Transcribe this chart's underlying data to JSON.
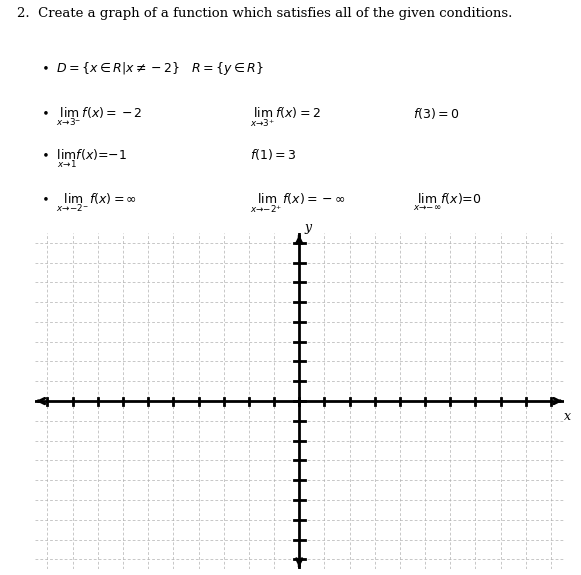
{
  "title": "2.  Create a graph of a function which satisfies all of the given conditions.",
  "grid_color": "#b0b0b0",
  "axis_color": "#000000",
  "background_color": "#ffffff",
  "xlim": [
    -10,
    10
  ],
  "ylim": [
    -8,
    8
  ],
  "xlabel": "x",
  "ylabel": "y",
  "figsize": [
    5.81,
    5.75
  ],
  "dpi": 100,
  "text_color": "#000000",
  "tick_size_x": 0.18,
  "tick_size_y": 0.22,
  "axis_lw": 2.0,
  "grid_lw": 0.5
}
